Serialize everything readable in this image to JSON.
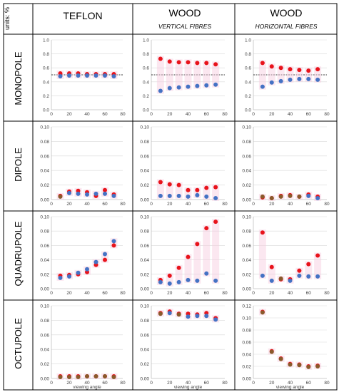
{
  "table": {
    "units_label": "units: %",
    "columns": [
      {
        "title": "TEFLON",
        "subtitle": ""
      },
      {
        "title": "WOOD",
        "subtitle": "VERTICAL FIBRES"
      },
      {
        "title": "WOOD",
        "subtitle": "HORIZONTAL FIBRES"
      }
    ],
    "rows": [
      "MONOPOLE",
      "DIPOLE",
      "QUADRUPOLE",
      "OCTUPOLE"
    ]
  },
  "colors": {
    "series_red": "#e8131b",
    "series_blue": "#4472c4",
    "overlap_brown": "#8a5a2b",
    "highlight_pink": "#f6c9de",
    "grid": "#d9d9d9",
    "axis": "#bfbfbf",
    "border": "#000000"
  },
  "chart_data": [
    {
      "row": "MONOPOLE",
      "column": "TEFLON",
      "type": "scatter",
      "xlim": [
        0,
        80
      ],
      "ylim": [
        0,
        1.0
      ],
      "xticks": [
        0,
        20,
        40,
        60,
        80
      ],
      "yticks": [
        0,
        0.2,
        0.4,
        0.6,
        0.8,
        1.0
      ],
      "ytick_labels": [
        "0.0",
        "0.2",
        "0.4",
        "0.6",
        "0.8",
        "1.0"
      ],
      "reference_line": 0.5,
      "xlabel": "",
      "series": [
        {
          "color": "red",
          "x": [
            10,
            20,
            30,
            40,
            50,
            60,
            70
          ],
          "y": [
            0.52,
            0.52,
            0.52,
            0.51,
            0.51,
            0.51,
            0.51
          ]
        },
        {
          "color": "blue",
          "x": [
            10,
            20,
            30,
            40,
            50,
            60,
            70
          ],
          "y": [
            0.48,
            0.49,
            0.49,
            0.49,
            0.49,
            0.49,
            0.48
          ]
        }
      ]
    },
    {
      "row": "MONOPOLE",
      "column": "WOOD VERTICAL",
      "type": "scatter",
      "xlim": [
        0,
        80
      ],
      "ylim": [
        0,
        1.0
      ],
      "xticks": [
        0,
        20,
        40,
        60,
        80
      ],
      "yticks": [
        0,
        0.2,
        0.4,
        0.6,
        0.8,
        1.0
      ],
      "ytick_labels": [
        "0.0",
        "0.2",
        "0.4",
        "0.6",
        "0.8",
        "1.0"
      ],
      "reference_line": 0.5,
      "xlabel": "",
      "series": [
        {
          "color": "red",
          "x": [
            10,
            20,
            30,
            40,
            50,
            60,
            70
          ],
          "y": [
            0.73,
            0.69,
            0.68,
            0.68,
            0.67,
            0.67,
            0.65
          ]
        },
        {
          "color": "blue",
          "x": [
            10,
            20,
            30,
            40,
            50,
            60,
            70
          ],
          "y": [
            0.27,
            0.31,
            0.32,
            0.33,
            0.34,
            0.35,
            0.36
          ]
        }
      ]
    },
    {
      "row": "MONOPOLE",
      "column": "WOOD HORIZONTAL",
      "type": "scatter",
      "xlim": [
        0,
        80
      ],
      "ylim": [
        0,
        1.0
      ],
      "xticks": [
        0,
        20,
        40,
        60,
        80
      ],
      "yticks": [
        0,
        0.2,
        0.4,
        0.6,
        0.8,
        1.0
      ],
      "ytick_labels": [
        "0.0",
        "0.2",
        "0.4",
        "0.6",
        "0.8",
        "1.0"
      ],
      "reference_line": 0.5,
      "xlabel": "",
      "series": [
        {
          "color": "red",
          "x": [
            10,
            20,
            30,
            40,
            50,
            60,
            70
          ],
          "y": [
            0.67,
            0.62,
            0.6,
            0.58,
            0.57,
            0.56,
            0.58
          ]
        },
        {
          "color": "blue",
          "x": [
            10,
            20,
            30,
            40,
            50,
            60,
            70
          ],
          "y": [
            0.33,
            0.39,
            0.41,
            0.43,
            0.44,
            0.44,
            0.43
          ]
        }
      ]
    },
    {
      "row": "DIPOLE",
      "column": "TEFLON",
      "type": "scatter",
      "xlim": [
        0,
        80
      ],
      "ylim": [
        0,
        0.1
      ],
      "xticks": [
        0,
        20,
        40,
        60,
        80
      ],
      "yticks": [
        0,
        0.02,
        0.04,
        0.06,
        0.08,
        0.1
      ],
      "ytick_labels": [
        "0.00",
        "0.02",
        "0.04",
        "0.06",
        "0.08",
        "0.10"
      ],
      "xlabel": "",
      "series": [
        {
          "color": "red",
          "x": [
            10,
            20,
            30,
            40,
            50,
            60,
            70
          ],
          "y": [
            0.005,
            0.011,
            0.012,
            0.01,
            0.005,
            0.013,
            0.007
          ]
        },
        {
          "color": "blue",
          "x": [
            10,
            20,
            30,
            40,
            50,
            60,
            70
          ],
          "y": [
            0.004,
            0.009,
            0.008,
            0.007,
            0.008,
            0.008,
            0.005
          ]
        }
      ]
    },
    {
      "row": "DIPOLE",
      "column": "WOOD VERTICAL",
      "type": "scatter",
      "xlim": [
        0,
        80
      ],
      "ylim": [
        0,
        0.1
      ],
      "xticks": [
        0,
        20,
        40,
        60,
        80
      ],
      "yticks": [
        0,
        0.02,
        0.04,
        0.06,
        0.08,
        0.1
      ],
      "ytick_labels": [
        "0.00",
        "0.02",
        "0.04",
        "0.06",
        "0.08",
        "0.10"
      ],
      "xlabel": "",
      "series": [
        {
          "color": "red",
          "x": [
            10,
            20,
            30,
            40,
            50,
            60,
            70
          ],
          "y": [
            0.024,
            0.021,
            0.02,
            0.013,
            0.013,
            0.016,
            0.017
          ]
        },
        {
          "color": "blue",
          "x": [
            10,
            20,
            30,
            40,
            50,
            60,
            70
          ],
          "y": [
            0.005,
            0.005,
            0.005,
            0.004,
            0.006,
            0.004,
            0.002
          ]
        }
      ]
    },
    {
      "row": "DIPOLE",
      "column": "WOOD HORIZONTAL",
      "type": "scatter",
      "xlim": [
        0,
        80
      ],
      "ylim": [
        0,
        0.1
      ],
      "xticks": [
        0,
        20,
        40,
        60,
        80
      ],
      "yticks": [
        0,
        0.02,
        0.04,
        0.06,
        0.08,
        0.1
      ],
      "ytick_labels": [
        "0.00",
        "0.02",
        "0.04",
        "0.06",
        "0.08",
        "0.10"
      ],
      "xlabel": "",
      "series": [
        {
          "color": "red",
          "x": [
            10,
            20,
            30,
            40,
            50,
            60,
            70
          ],
          "y": [
            0.003,
            0.002,
            0.005,
            0.006,
            0.004,
            0.007,
            0.004
          ]
        },
        {
          "color": "blue",
          "x": [
            10,
            20,
            30,
            40,
            50,
            60,
            70
          ],
          "y": [
            0.004,
            0.002,
            0.004,
            0.005,
            0.004,
            0.005,
            0.002
          ]
        }
      ]
    },
    {
      "row": "QUADRUPOLE",
      "column": "TEFLON",
      "type": "scatter",
      "xlim": [
        0,
        80
      ],
      "ylim": [
        0,
        0.1
      ],
      "xticks": [
        0,
        20,
        40,
        60,
        80
      ],
      "yticks": [
        0,
        0.02,
        0.04,
        0.06,
        0.08,
        0.1
      ],
      "ytick_labels": [
        "0.00",
        "0.02",
        "0.04",
        "0.06",
        "0.08",
        "0.10"
      ],
      "xlabel": "",
      "series": [
        {
          "color": "red",
          "x": [
            10,
            20,
            30,
            40,
            50,
            60,
            70
          ],
          "y": [
            0.018,
            0.019,
            0.02,
            0.023,
            0.033,
            0.04,
            0.06
          ]
        },
        {
          "color": "blue",
          "x": [
            10,
            20,
            30,
            40,
            50,
            60,
            70
          ],
          "y": [
            0.015,
            0.017,
            0.022,
            0.027,
            0.037,
            0.048,
            0.066
          ]
        }
      ]
    },
    {
      "row": "QUADRUPOLE",
      "column": "WOOD VERTICAL",
      "type": "scatter",
      "xlim": [
        0,
        80
      ],
      "ylim": [
        0,
        0.1
      ],
      "xticks": [
        0,
        20,
        40,
        60,
        80
      ],
      "yticks": [
        0,
        0.02,
        0.04,
        0.06,
        0.08,
        0.1
      ],
      "ytick_labels": [
        "0.00",
        "0.02",
        "0.04",
        "0.06",
        "0.08",
        "0.10"
      ],
      "xlabel": "",
      "series": [
        {
          "color": "red",
          "x": [
            10,
            20,
            30,
            40,
            50,
            60,
            70
          ],
          "y": [
            0.012,
            0.018,
            0.029,
            0.044,
            0.062,
            0.084,
            0.093
          ]
        },
        {
          "color": "blue",
          "x": [
            10,
            20,
            30,
            40,
            50,
            60,
            70
          ],
          "y": [
            0.009,
            0.007,
            0.009,
            0.012,
            0.011,
            0.021,
            0.011
          ]
        }
      ]
    },
    {
      "row": "QUADRUPOLE",
      "column": "WOOD HORIZONTAL",
      "type": "scatter",
      "xlim": [
        0,
        80
      ],
      "ylim": [
        0,
        0.1
      ],
      "xticks": [
        0,
        20,
        40,
        60,
        80
      ],
      "yticks": [
        0,
        0.02,
        0.04,
        0.06,
        0.08,
        0.1
      ],
      "ytick_labels": [
        "0.00",
        "0.02",
        "0.04",
        "0.06",
        "0.08",
        "0.10"
      ],
      "xlabel": "",
      "series": [
        {
          "color": "red",
          "x": [
            10,
            20,
            30,
            40,
            50,
            60,
            70
          ],
          "y": [
            0.078,
            0.03,
            0.013,
            0.013,
            0.025,
            0.034,
            0.046
          ]
        },
        {
          "color": "blue",
          "x": [
            10,
            20,
            30,
            40,
            50,
            60,
            70
          ],
          "y": [
            0.018,
            0.011,
            0.014,
            0.011,
            0.018,
            0.017,
            0.017
          ]
        }
      ]
    },
    {
      "row": "OCTUPOLE",
      "column": "TEFLON",
      "type": "scatter",
      "xlim": [
        0,
        80
      ],
      "ylim": [
        0,
        0.1
      ],
      "xticks": [
        0,
        20,
        40,
        60,
        80
      ],
      "yticks": [
        0,
        0.02,
        0.04,
        0.06,
        0.08,
        0.1
      ],
      "ytick_labels": [
        "0.00",
        "0.02",
        "0.04",
        "0.06",
        "0.08",
        "0.10"
      ],
      "xlabel": "viewing angle",
      "series": [
        {
          "color": "red",
          "x": [
            10,
            20,
            30,
            40,
            50,
            60,
            70
          ],
          "y": [
            0.003,
            0.003,
            0.003,
            0.003,
            0.003,
            0.003,
            0.003
          ]
        },
        {
          "color": "blue",
          "x": [
            10,
            20,
            30,
            40,
            50,
            60,
            70
          ],
          "y": [
            0.002,
            0.002,
            0.002,
            0.003,
            0.003,
            0.003,
            0.002
          ]
        }
      ]
    },
    {
      "row": "OCTUPOLE",
      "column": "WOOD VERTICAL",
      "type": "scatter",
      "xlim": [
        0,
        80
      ],
      "ylim": [
        0,
        0.1
      ],
      "xticks": [
        0,
        20,
        40,
        60,
        80
      ],
      "yticks": [
        0,
        0.02,
        0.04,
        0.06,
        0.08,
        0.1
      ],
      "ytick_labels": [
        "0.00",
        "0.02",
        "0.04",
        "0.06",
        "0.08",
        "0.10"
      ],
      "xlabel": "viewing angle",
      "series": [
        {
          "color": "red",
          "x": [
            10,
            20,
            30,
            40,
            50,
            60,
            70
          ],
          "y": [
            0.09,
            0.092,
            0.089,
            0.089,
            0.088,
            0.09,
            0.083
          ]
        },
        {
          "color": "blue",
          "x": [
            10,
            20,
            30,
            40,
            50,
            60,
            70
          ],
          "y": [
            0.089,
            0.09,
            0.088,
            0.085,
            0.086,
            0.086,
            0.081
          ]
        }
      ]
    },
    {
      "row": "OCTUPOLE",
      "column": "WOOD HORIZONTAL",
      "type": "scatter",
      "xlim": [
        0,
        80
      ],
      "ylim": [
        0,
        0.12
      ],
      "xticks": [
        0,
        20,
        40,
        60,
        80
      ],
      "yticks": [
        0,
        0.02,
        0.04,
        0.06,
        0.08,
        0.1,
        0.12
      ],
      "ytick_labels": [
        "0.00",
        "0.02",
        "0.04",
        "0.06",
        "0.08",
        "0.10",
        "0.12"
      ],
      "xlabel": "viewing angle",
      "series": [
        {
          "color": "red",
          "x": [
            10,
            20,
            30,
            40,
            50,
            60,
            70
          ],
          "y": [
            0.11,
            0.045,
            0.033,
            0.024,
            0.023,
            0.02,
            0.021
          ]
        },
        {
          "color": "blue",
          "x": [
            10,
            20,
            30,
            40,
            50,
            60,
            70
          ],
          "y": [
            0.109,
            0.044,
            0.032,
            0.023,
            0.022,
            0.019,
            0.02
          ]
        }
      ]
    }
  ]
}
